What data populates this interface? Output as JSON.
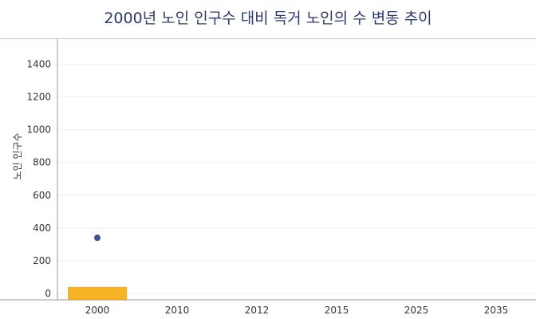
{
  "chart_data": {
    "type": "bar",
    "title": "2000년 노인 인구수 대비 독거 노인의 수 변동 추이",
    "ylabel": "노인 인구수",
    "xlabel": "",
    "categories": [
      "2000",
      "2010",
      "2012",
      "2015",
      "2025",
      "2035"
    ],
    "ylim": [
      0,
      1500
    ],
    "yticks": [
      0,
      200,
      400,
      600,
      800,
      1000,
      1200,
      1400
    ],
    "grid": true,
    "series": [
      {
        "type": "bar",
        "values": [
          40,
          null,
          null,
          null,
          null,
          null
        ],
        "color": "#f5b325"
      },
      {
        "type": "scatter",
        "values": [
          340,
          null,
          null,
          null,
          null,
          null
        ],
        "color": "#3f4f8f"
      }
    ]
  }
}
